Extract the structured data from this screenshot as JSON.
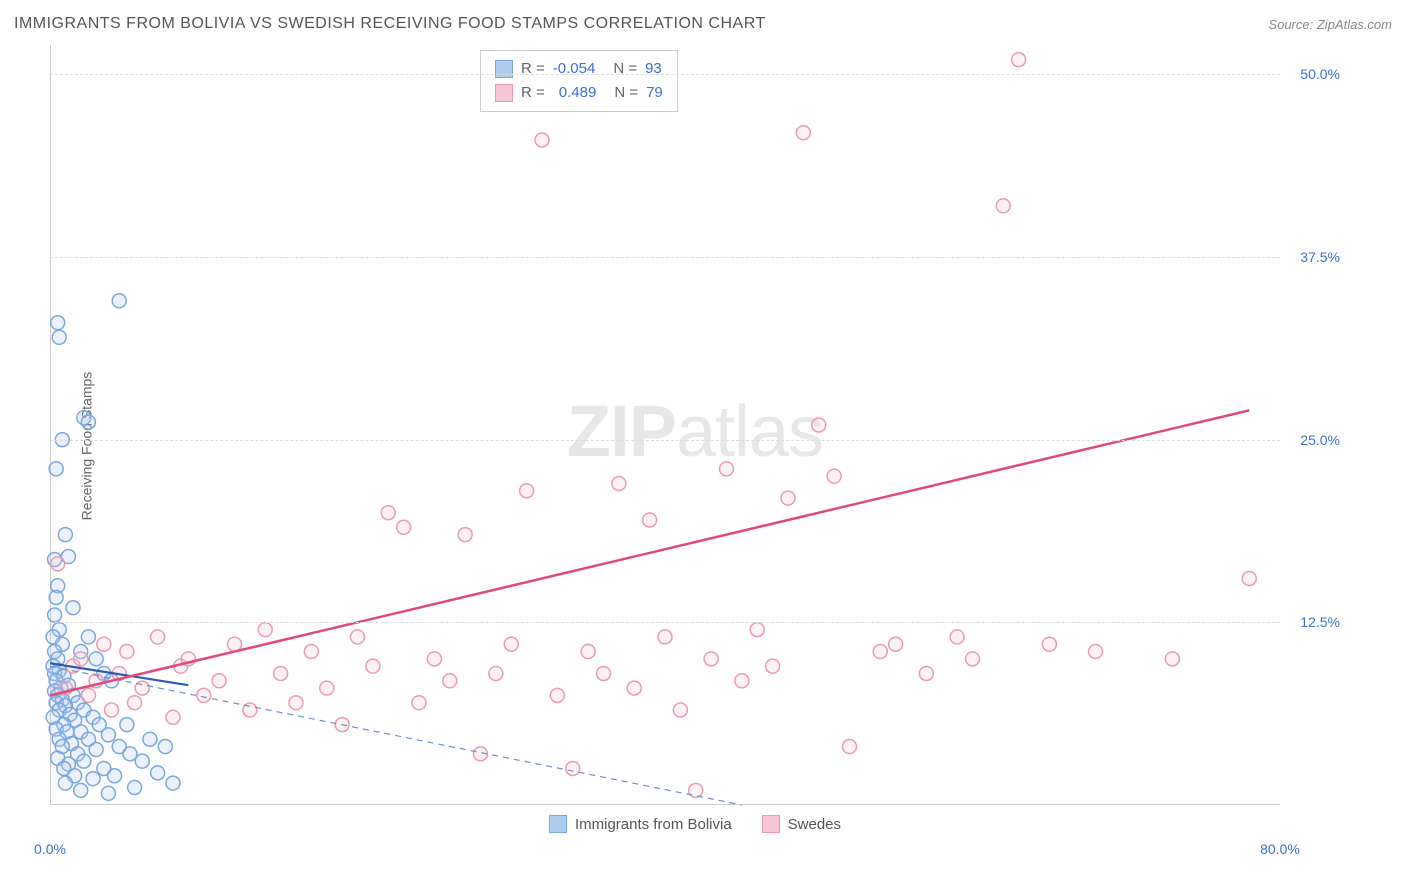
{
  "title": "IMMIGRANTS FROM BOLIVIA VS SWEDISH RECEIVING FOOD STAMPS CORRELATION CHART",
  "source_label": "Source:",
  "source_name": "ZipAtlas.com",
  "y_axis_label": "Receiving Food Stamps",
  "watermark": {
    "part1": "ZIP",
    "part2": "atlas"
  },
  "chart": {
    "type": "scatter",
    "xlim": [
      0,
      80
    ],
    "ylim": [
      0,
      52
    ],
    "x_ticks": [
      {
        "v": 0,
        "label": "0.0%"
      },
      {
        "v": 80,
        "label": "80.0%"
      }
    ],
    "y_ticks": [
      {
        "v": 12.5,
        "label": "12.5%"
      },
      {
        "v": 25.0,
        "label": "25.0%"
      },
      {
        "v": 37.5,
        "label": "37.5%"
      },
      {
        "v": 50.0,
        "label": "50.0%"
      }
    ],
    "grid_color": "#dddddd",
    "background_color": "#ffffff",
    "marker_radius": 7,
    "marker_stroke_width": 1.5,
    "marker_fill_opacity": 0.25,
    "series": [
      {
        "name": "Immigrants from Bolivia",
        "color_stroke": "#7aa7e0",
        "color_fill": "#aecdf0",
        "R": "-0.054",
        "N": "93",
        "regression": {
          "x1": 0,
          "y1": 9.5,
          "x2": 45,
          "y2": 0,
          "style": "dashed",
          "width": 1.2,
          "color": "#6b8fc7"
        },
        "regression_solid": {
          "x1": 0,
          "y1": 9.7,
          "x2": 9,
          "y2": 8.2,
          "style": "solid",
          "width": 2.2,
          "color": "#2b5bb5"
        },
        "points": [
          [
            0.3,
            16.8
          ],
          [
            0.5,
            15.0
          ],
          [
            0.4,
            14.2
          ],
          [
            0.3,
            13.0
          ],
          [
            0.6,
            12.0
          ],
          [
            0.2,
            11.5
          ],
          [
            0.8,
            11.0
          ],
          [
            0.3,
            10.5
          ],
          [
            0.5,
            10.0
          ],
          [
            0.2,
            9.5
          ],
          [
            0.6,
            9.2
          ],
          [
            0.3,
            9.0
          ],
          [
            0.9,
            8.8
          ],
          [
            0.4,
            8.5
          ],
          [
            1.2,
            8.2
          ],
          [
            0.7,
            8.0
          ],
          [
            0.3,
            7.8
          ],
          [
            1.5,
            7.5
          ],
          [
            0.5,
            7.5
          ],
          [
            0.8,
            7.2
          ],
          [
            1.8,
            7.0
          ],
          [
            0.4,
            7.0
          ],
          [
            1.0,
            6.8
          ],
          [
            2.2,
            6.5
          ],
          [
            0.6,
            6.5
          ],
          [
            1.3,
            6.2
          ],
          [
            0.2,
            6.0
          ],
          [
            2.8,
            6.0
          ],
          [
            1.6,
            5.8
          ],
          [
            0.9,
            5.5
          ],
          [
            3.2,
            5.5
          ],
          [
            0.4,
            5.2
          ],
          [
            2.0,
            5.0
          ],
          [
            1.1,
            5.0
          ],
          [
            3.8,
            4.8
          ],
          [
            0.6,
            4.5
          ],
          [
            2.5,
            4.5
          ],
          [
            1.4,
            4.2
          ],
          [
            4.5,
            4.0
          ],
          [
            0.8,
            4.0
          ],
          [
            3.0,
            3.8
          ],
          [
            1.8,
            3.5
          ],
          [
            5.2,
            3.5
          ],
          [
            0.5,
            3.2
          ],
          [
            2.2,
            3.0
          ],
          [
            6.0,
            3.0
          ],
          [
            1.2,
            2.8
          ],
          [
            3.5,
            2.5
          ],
          [
            0.9,
            2.5
          ],
          [
            7.0,
            2.2
          ],
          [
            1.6,
            2.0
          ],
          [
            4.2,
            2.0
          ],
          [
            2.8,
            1.8
          ],
          [
            8.0,
            1.5
          ],
          [
            1.0,
            1.5
          ],
          [
            5.5,
            1.2
          ],
          [
            2.0,
            1.0
          ],
          [
            3.8,
            0.8
          ],
          [
            2.2,
            26.5
          ],
          [
            2.5,
            26.2
          ],
          [
            0.8,
            25.0
          ],
          [
            4.5,
            34.5
          ],
          [
            0.5,
            33.0
          ],
          [
            0.6,
            32.0
          ],
          [
            0.4,
            23.0
          ],
          [
            1.0,
            18.5
          ],
          [
            1.2,
            17.0
          ],
          [
            2.0,
            10.5
          ],
          [
            3.5,
            9.0
          ],
          [
            4.0,
            8.5
          ],
          [
            5.0,
            5.5
          ],
          [
            6.5,
            4.5
          ],
          [
            7.5,
            4.0
          ],
          [
            2.5,
            11.5
          ],
          [
            3.0,
            10.0
          ],
          [
            1.5,
            13.5
          ]
        ]
      },
      {
        "name": "Swedes",
        "color_stroke": "#e89bb3",
        "color_fill": "#f5c6d4",
        "R": "0.489",
        "N": "79",
        "regression": {
          "x1": 0,
          "y1": 7.5,
          "x2": 78,
          "y2": 27.0,
          "style": "solid",
          "width": 2.5,
          "color": "#e04a7a"
        },
        "points": [
          [
            0.5,
            16.5
          ],
          [
            1.0,
            8.0
          ],
          [
            1.5,
            9.5
          ],
          [
            2.0,
            10.0
          ],
          [
            2.5,
            7.5
          ],
          [
            3.0,
            8.5
          ],
          [
            3.5,
            11.0
          ],
          [
            4.0,
            6.5
          ],
          [
            4.5,
            9.0
          ],
          [
            5.0,
            10.5
          ],
          [
            5.5,
            7.0
          ],
          [
            6.0,
            8.0
          ],
          [
            7.0,
            11.5
          ],
          [
            8.0,
            6.0
          ],
          [
            8.5,
            9.5
          ],
          [
            9.0,
            10.0
          ],
          [
            10.0,
            7.5
          ],
          [
            11.0,
            8.5
          ],
          [
            12.0,
            11.0
          ],
          [
            13.0,
            6.5
          ],
          [
            14.0,
            12.0
          ],
          [
            15.0,
            9.0
          ],
          [
            16.0,
            7.0
          ],
          [
            17.0,
            10.5
          ],
          [
            18.0,
            8.0
          ],
          [
            19.0,
            5.5
          ],
          [
            20.0,
            11.5
          ],
          [
            21.0,
            9.5
          ],
          [
            22.0,
            20.0
          ],
          [
            23.0,
            19.0
          ],
          [
            24.0,
            7.0
          ],
          [
            25.0,
            10.0
          ],
          [
            26.0,
            8.5
          ],
          [
            27.0,
            18.5
          ],
          [
            28.0,
            3.5
          ],
          [
            29.0,
            9.0
          ],
          [
            30.0,
            11.0
          ],
          [
            31.0,
            21.5
          ],
          [
            32.0,
            45.5
          ],
          [
            33.0,
            7.5
          ],
          [
            34.0,
            2.5
          ],
          [
            35.0,
            10.5
          ],
          [
            36.0,
            9.0
          ],
          [
            37.0,
            22.0
          ],
          [
            38.0,
            8.0
          ],
          [
            39.0,
            19.5
          ],
          [
            40.0,
            11.5
          ],
          [
            41.0,
            6.5
          ],
          [
            42.0,
            1.0
          ],
          [
            43.0,
            10.0
          ],
          [
            44.0,
            23.0
          ],
          [
            45.0,
            8.5
          ],
          [
            46.0,
            12.0
          ],
          [
            47.0,
            9.5
          ],
          [
            48.0,
            21.0
          ],
          [
            49.0,
            46.0
          ],
          [
            50.0,
            26.0
          ],
          [
            51.0,
            22.5
          ],
          [
            52.0,
            4.0
          ],
          [
            54.0,
            10.5
          ],
          [
            55.0,
            11.0
          ],
          [
            57.0,
            9.0
          ],
          [
            59.0,
            11.5
          ],
          [
            60.0,
            10.0
          ],
          [
            62.0,
            41.0
          ],
          [
            63.0,
            51.0
          ],
          [
            65.0,
            11.0
          ],
          [
            68.0,
            10.5
          ],
          [
            73.0,
            10.0
          ],
          [
            78.0,
            15.5
          ]
        ]
      }
    ],
    "bottom_legend": [
      {
        "label": "Immigrants from Bolivia",
        "fill": "#aecdf0",
        "stroke": "#7aa7e0"
      },
      {
        "label": "Swedes",
        "fill": "#f5c6d4",
        "stroke": "#e89bb3"
      }
    ]
  }
}
